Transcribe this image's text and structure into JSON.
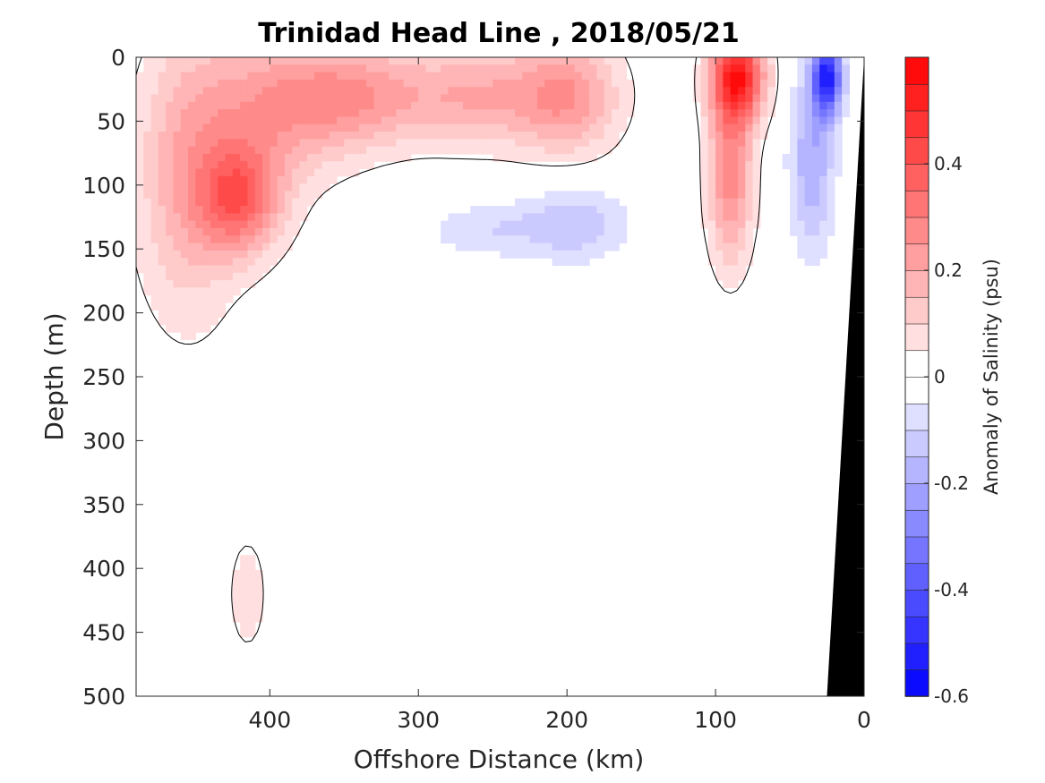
{
  "chart_data": {
    "type": "heatmap",
    "title": "Trinidad Head Line , 2018/05/21",
    "xlabel": "Offshore Distance (km)",
    "ylabel": "Depth (m)",
    "xlim": [
      490,
      0
    ],
    "ylim": [
      0,
      500
    ],
    "x_reversed": true,
    "y_reversed": true,
    "xticks": [
      "400",
      "300",
      "200",
      "100",
      "0"
    ],
    "xtick_values": [
      400,
      300,
      200,
      100,
      0
    ],
    "yticks": [
      "0",
      "50",
      "100",
      "150",
      "200",
      "250",
      "300",
      "350",
      "400",
      "450",
      "500"
    ],
    "ytick_values": [
      0,
      50,
      100,
      150,
      200,
      250,
      300,
      350,
      400,
      450,
      500
    ],
    "colorbar": {
      "label": "Anomaly of Salinity (psu)",
      "range": [
        -0.6,
        0.6
      ],
      "ticks": [
        "0.4",
        "0.2",
        "0",
        "-0.2",
        "-0.4",
        "-0.6"
      ],
      "tick_values": [
        0.4,
        0.2,
        0,
        -0.2,
        -0.4,
        -0.6
      ],
      "levels": 24,
      "positive_color": "#ff0000",
      "negative_color": "#0000ff",
      "zero_color": "#ffffff"
    },
    "fields": [
      {
        "x": 455,
        "y": 95,
        "v": 0.18,
        "sx": 35,
        "sy": 110
      },
      {
        "x": 420,
        "y": 112,
        "v": 0.32,
        "sx": 28,
        "sy": 42
      },
      {
        "x": 400,
        "y": 40,
        "v": 0.2,
        "sx": 50,
        "sy": 60
      },
      {
        "x": 340,
        "y": 30,
        "v": 0.22,
        "sx": 50,
        "sy": 40
      },
      {
        "x": 260,
        "y": 30,
        "v": 0.18,
        "sx": 45,
        "sy": 40
      },
      {
        "x": 200,
        "y": 30,
        "v": 0.24,
        "sx": 35,
        "sy": 45
      },
      {
        "x": 85,
        "y": 15,
        "v": 0.5,
        "sx": 18,
        "sy": 35
      },
      {
        "x": 90,
        "y": 90,
        "v": 0.28,
        "sx": 15,
        "sy": 70
      },
      {
        "x": 415,
        "y": 420,
        "v": 0.08,
        "sx": 14,
        "sy": 50
      },
      {
        "x": 255,
        "y": 135,
        "v": -0.09,
        "sx": 40,
        "sy": 22
      },
      {
        "x": 195,
        "y": 130,
        "v": -0.14,
        "sx": 35,
        "sy": 30
      },
      {
        "x": 25,
        "y": 15,
        "v": -0.5,
        "sx": 10,
        "sy": 30
      },
      {
        "x": 35,
        "y": 80,
        "v": -0.2,
        "sx": 15,
        "sy": 70
      }
    ],
    "shelf": [
      [
        25,
        500
      ],
      [
        0,
        0
      ],
      [
        0,
        500
      ]
    ],
    "shelf_color": "#000000"
  }
}
